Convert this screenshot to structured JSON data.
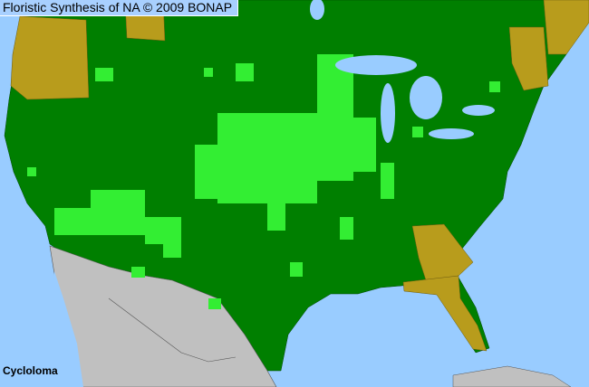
{
  "header": {
    "title": "Floristic Synthesis of NA © 2009 BONAP"
  },
  "map": {
    "taxon": "Cycloloma",
    "colors": {
      "water": "#99ccff",
      "present_state": "#007f00",
      "present_county": "#33ee33",
      "absent_state": "#b89c1c",
      "outside_region": "#c0c0c0"
    }
  }
}
